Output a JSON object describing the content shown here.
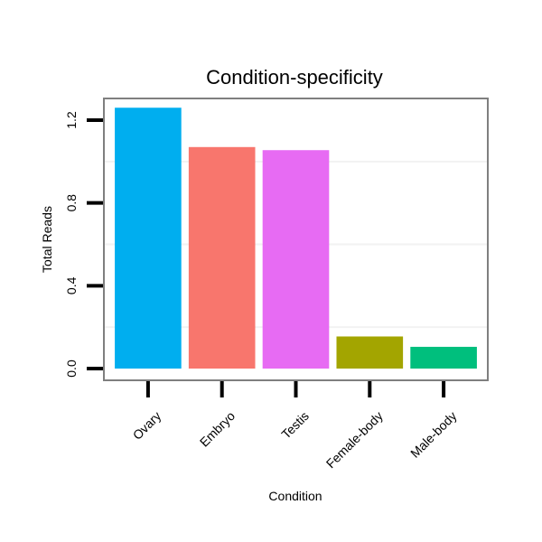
{
  "chart_data": {
    "type": "bar",
    "title": "Condition-specificity",
    "xlabel": "Condition",
    "ylabel": "Total Reads",
    "categories": [
      "Ovary",
      "Embryo",
      "Testis",
      "Female-body",
      "Male-body"
    ],
    "values": [
      1.26,
      1.07,
      1.055,
      0.155,
      0.105
    ],
    "colors": [
      "#00AEEF",
      "#F8766D",
      "#E76BF3",
      "#A3A500",
      "#00BF7D"
    ],
    "ylim": [
      -0.03,
      1.3
    ],
    "yticks": [
      0.0,
      0.4,
      0.8,
      1.2
    ],
    "ytick_labels": [
      "0.0",
      "0.4",
      "0.8",
      "1.2"
    ],
    "grid": "horizontal, faint",
    "legend": "none"
  }
}
